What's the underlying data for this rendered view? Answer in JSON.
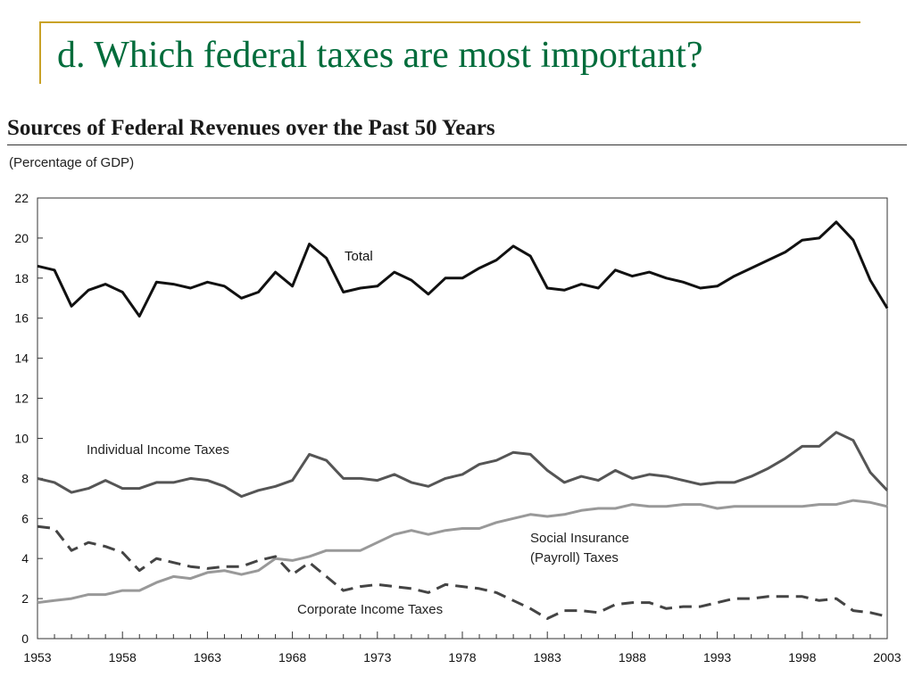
{
  "slide": {
    "title": "d.  Which federal taxes are most important?"
  },
  "chart_data": {
    "type": "line",
    "title": "Sources of Federal Revenues over the Past 50 Years",
    "subtitle": "(Percentage of GDP)",
    "xlim": [
      1953,
      2003
    ],
    "ylim": [
      0,
      22
    ],
    "x_ticks": [
      1953,
      1958,
      1963,
      1968,
      1973,
      1978,
      1983,
      1988,
      1993,
      1998,
      2003
    ],
    "y_ticks": [
      0,
      2,
      4,
      6,
      8,
      10,
      12,
      14,
      16,
      18,
      20,
      22
    ],
    "grid": false,
    "x": [
      1953,
      1954,
      1955,
      1956,
      1957,
      1958,
      1959,
      1960,
      1961,
      1962,
      1963,
      1964,
      1965,
      1966,
      1967,
      1968,
      1969,
      1970,
      1971,
      1972,
      1973,
      1974,
      1975,
      1976,
      1977,
      1978,
      1979,
      1980,
      1981,
      1982,
      1983,
      1984,
      1985,
      1986,
      1987,
      1988,
      1989,
      1990,
      1991,
      1992,
      1993,
      1994,
      1995,
      1996,
      1997,
      1998,
      1999,
      2000,
      2001,
      2002,
      2003
    ],
    "series": [
      {
        "name": "Total",
        "color": "#111111",
        "dash": "solid",
        "values": [
          18.6,
          18.4,
          16.6,
          17.4,
          17.7,
          17.3,
          16.1,
          17.8,
          17.7,
          17.5,
          17.8,
          17.6,
          17.0,
          17.3,
          18.3,
          17.6,
          19.7,
          19.0,
          17.3,
          17.5,
          17.6,
          18.3,
          17.9,
          17.2,
          18.0,
          18.0,
          18.5,
          18.9,
          19.6,
          19.1,
          17.5,
          17.4,
          17.7,
          17.5,
          18.4,
          18.1,
          18.3,
          18.0,
          17.8,
          17.5,
          17.6,
          18.1,
          18.5,
          18.9,
          19.3,
          19.9,
          20.0,
          20.8,
          19.9,
          17.9,
          16.5
        ]
      },
      {
        "name": "Individual Income Taxes",
        "color": "#555555",
        "dash": "solid",
        "values": [
          8.0,
          7.8,
          7.3,
          7.5,
          7.9,
          7.5,
          7.5,
          7.8,
          7.8,
          8.0,
          7.9,
          7.6,
          7.1,
          7.4,
          7.6,
          7.9,
          9.2,
          8.9,
          8.0,
          8.0,
          7.9,
          8.2,
          7.8,
          7.6,
          8.0,
          8.2,
          8.7,
          8.9,
          9.3,
          9.2,
          8.4,
          7.8,
          8.1,
          7.9,
          8.4,
          8.0,
          8.2,
          8.1,
          7.9,
          7.7,
          7.8,
          7.8,
          8.1,
          8.5,
          9.0,
          9.6,
          9.6,
          10.3,
          9.9,
          8.3,
          7.4
        ]
      },
      {
        "name": "Social Insurance (Payroll) Taxes",
        "color": "#999999",
        "dash": "solid",
        "values": [
          1.8,
          1.9,
          2.0,
          2.2,
          2.2,
          2.4,
          2.4,
          2.8,
          3.1,
          3.0,
          3.3,
          3.4,
          3.2,
          3.4,
          4.0,
          3.9,
          4.1,
          4.4,
          4.4,
          4.4,
          4.8,
          5.2,
          5.4,
          5.2,
          5.4,
          5.5,
          5.5,
          5.8,
          6.0,
          6.2,
          6.1,
          6.2,
          6.4,
          6.5,
          6.5,
          6.7,
          6.6,
          6.6,
          6.7,
          6.7,
          6.5,
          6.6,
          6.6,
          6.6,
          6.6,
          6.6,
          6.7,
          6.7,
          6.9,
          6.8,
          6.6
        ]
      },
      {
        "name": "Corporate Income Taxes",
        "color": "#444444",
        "dash": "dashed",
        "values": [
          5.6,
          5.5,
          4.4,
          4.8,
          4.6,
          4.3,
          3.4,
          4.0,
          3.8,
          3.6,
          3.5,
          3.6,
          3.6,
          3.9,
          4.1,
          3.2,
          3.8,
          3.1,
          2.4,
          2.6,
          2.7,
          2.6,
          2.5,
          2.3,
          2.7,
          2.6,
          2.5,
          2.3,
          1.9,
          1.5,
          1.0,
          1.4,
          1.4,
          1.3,
          1.7,
          1.8,
          1.8,
          1.5,
          1.6,
          1.6,
          1.8,
          2.0,
          2.0,
          2.1,
          2.1,
          2.1,
          1.9,
          2.0,
          1.4,
          1.3,
          1.1
        ]
      }
    ],
    "annotations": {
      "total": "Total",
      "individual": "Individual Income Taxes",
      "social_line1": "Social Insurance",
      "social_line2": "(Payroll) Taxes",
      "corporate": "Corporate Income Taxes"
    }
  }
}
